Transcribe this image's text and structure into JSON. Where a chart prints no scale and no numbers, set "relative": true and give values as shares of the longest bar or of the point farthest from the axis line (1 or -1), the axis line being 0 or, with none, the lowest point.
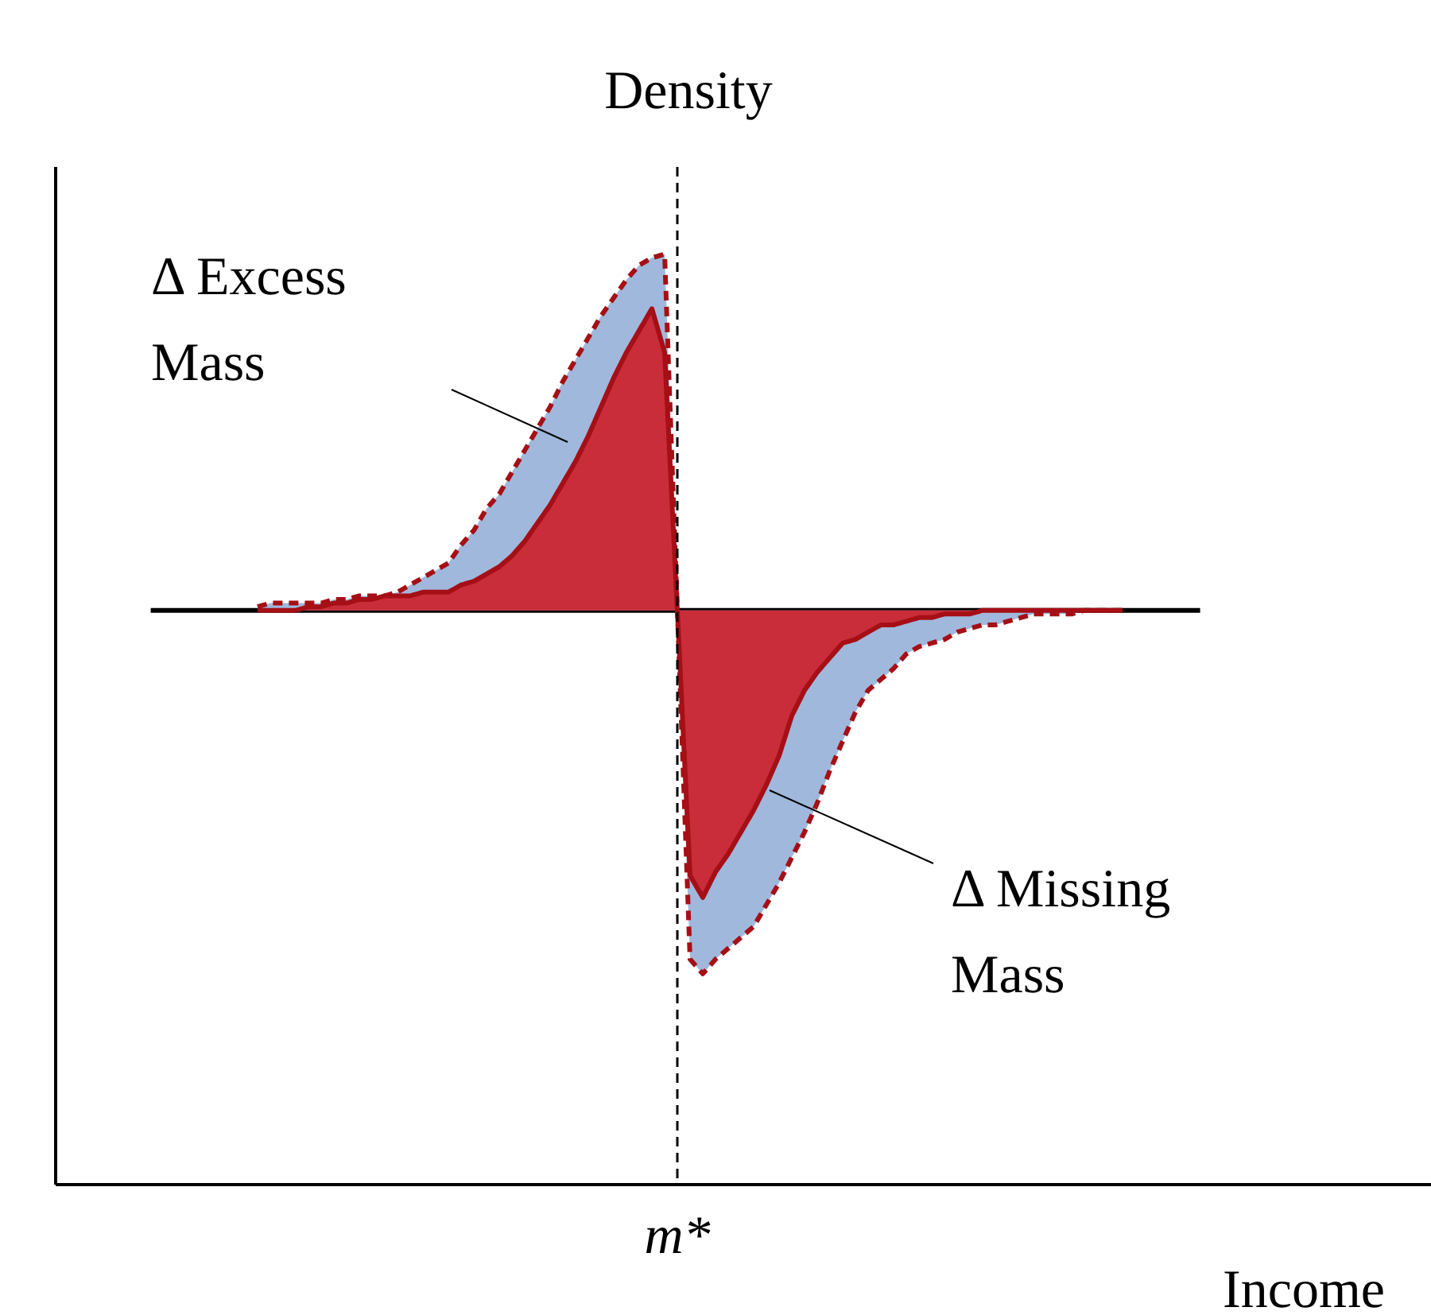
{
  "chart_data": {
    "type": "area",
    "relative": true,
    "ylabel": "Density",
    "categories": [
      null,
      null,
      null,
      null,
      null,
      null,
      null,
      null,
      null,
      null,
      null,
      null,
      null,
      null,
      null,
      null,
      null,
      null,
      null,
      null,
      null,
      null,
      null,
      null,
      null,
      null,
      null,
      null,
      null,
      null,
      null,
      null,
      null,
      null,
      null,
      null,
      null,
      null,
      null,
      null,
      null,
      null,
      null,
      null,
      null,
      null,
      null,
      null,
      null,
      null,
      null,
      null,
      null,
      null,
      null,
      null,
      null,
      null,
      null,
      null,
      null,
      null,
      null,
      null,
      null,
      null,
      null,
      null,
      null
    ],
    "series": [
      {
        "color": "#a0b8dc",
        "line_style": "dashed",
        "values": [
          0.01,
          0.02,
          0.02,
          0.02,
          0.02,
          0.02,
          0.03,
          0.03,
          0.04,
          0.04,
          0.04,
          0.05,
          0.07,
          0.09,
          0.11,
          0.13,
          0.18,
          0.22,
          0.28,
          0.32,
          0.38,
          0.44,
          0.5,
          0.56,
          0.63,
          0.69,
          0.75,
          0.81,
          0.86,
          0.91,
          0.95,
          0.97,
          0.98,
          0,
          -0.96,
          -1,
          -0.96,
          -0.93,
          -0.9,
          -0.87,
          -0.81,
          -0.75,
          -0.68,
          -0.61,
          -0.53,
          -0.44,
          -0.36,
          -0.28,
          -0.22,
          -0.19,
          -0.16,
          -0.12,
          -0.1,
          -0.09,
          -0.08,
          -0.06,
          -0.05,
          -0.04,
          -0.04,
          -0.03,
          -0.02,
          -0.01,
          -0.01,
          -0.01,
          -0.01,
          0,
          0,
          0,
          0
        ]
      },
      {
        "color": "#c92d39",
        "line_style": "solid",
        "values": [
          0,
          0,
          0,
          0,
          0.01,
          0.01,
          0.02,
          0.02,
          0.03,
          0.03,
          0.04,
          0.04,
          0.04,
          0.05,
          0.05,
          0.05,
          0.07,
          0.08,
          0.1,
          0.12,
          0.15,
          0.19,
          0.24,
          0.29,
          0.35,
          0.41,
          0.48,
          0.56,
          0.64,
          0.71,
          0.77,
          0.83,
          0.71,
          0,
          -0.73,
          -0.79,
          -0.72,
          -0.67,
          -0.61,
          -0.55,
          -0.48,
          -0.4,
          -0.29,
          -0.22,
          -0.17,
          -0.13,
          -0.09,
          -0.08,
          -0.06,
          -0.04,
          -0.04,
          -0.03,
          -0.02,
          -0.02,
          -0.01,
          -0.01,
          -0.01,
          0,
          0,
          0,
          0,
          0,
          0,
          0,
          0,
          0,
          0,
          0,
          0
        ]
      }
    ],
    "annotations": [
      "m*",
      "Δ Excess\nMass",
      "Δ Missing\nMass",
      "Income"
    ]
  }
}
